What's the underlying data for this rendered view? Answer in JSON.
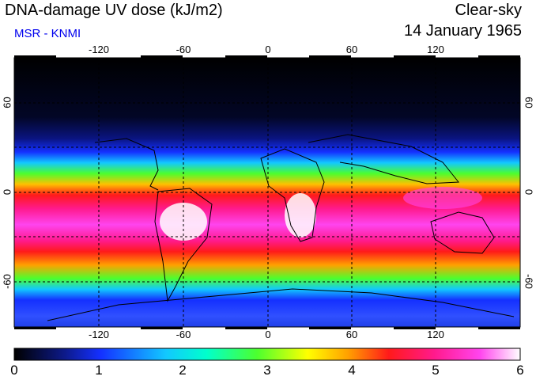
{
  "header": {
    "title": "DNA-damage UV dose (kJ/m2)",
    "subtitle": "MSR - KNMI",
    "condition": "Clear-sky",
    "date": "14 January 1965"
  },
  "colors": {
    "subtitle": "#0000ee",
    "scale": [
      "#000000",
      "#0d1a8a",
      "#1430ff",
      "#12c8ff",
      "#00ffcc",
      "#4cff2e",
      "#ffff00",
      "#ffa000",
      "#ff1a1a",
      "#ff1a8c",
      "#ff44ee",
      "#ffffff"
    ]
  },
  "map": {
    "lon_ticks": [
      "-120",
      "-60",
      "0",
      "60",
      "120"
    ],
    "lat_ticks": [
      "60",
      "0",
      "-60"
    ]
  },
  "colorbar": {
    "ticks": [
      "0",
      "1",
      "2",
      "3",
      "4",
      "5",
      "6"
    ]
  }
}
